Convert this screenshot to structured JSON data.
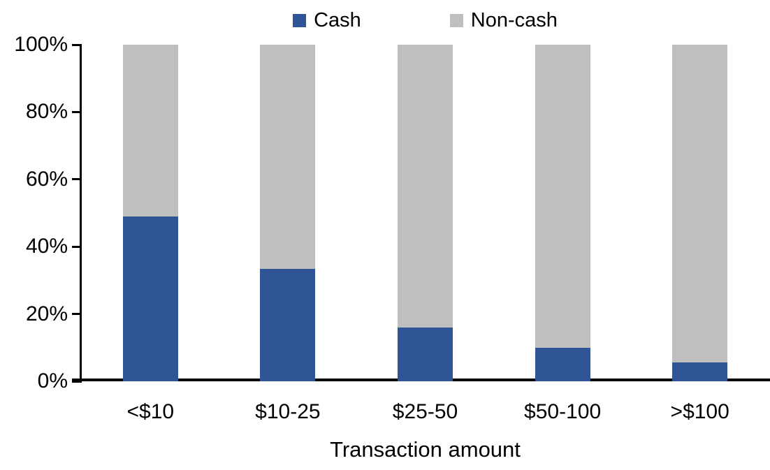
{
  "chart_data": {
    "type": "bar",
    "stacked": true,
    "stacked_100_percent": true,
    "categories": [
      "<$10",
      "$10-25",
      "$25-50",
      "$50-100",
      ">$100"
    ],
    "series": [
      {
        "name": "Cash",
        "color": "#2F5597",
        "values": [
          49,
          33.5,
          16,
          10,
          5.5
        ]
      },
      {
        "name": "Non-cash",
        "color": "#BFBFBF",
        "values": [
          51,
          66.5,
          84,
          90,
          94.5
        ]
      }
    ],
    "title": "",
    "xlabel": "Transaction amount",
    "ylabel": "",
    "ylim": [
      0,
      100
    ],
    "ytick_values": [
      0,
      20,
      40,
      60,
      80,
      100
    ],
    "ytick_labels": [
      "0%",
      "20%",
      "40%",
      "60%",
      "80%",
      "100%"
    ],
    "legend_position": "top-center",
    "grid": false,
    "axis_color": "#000000"
  }
}
